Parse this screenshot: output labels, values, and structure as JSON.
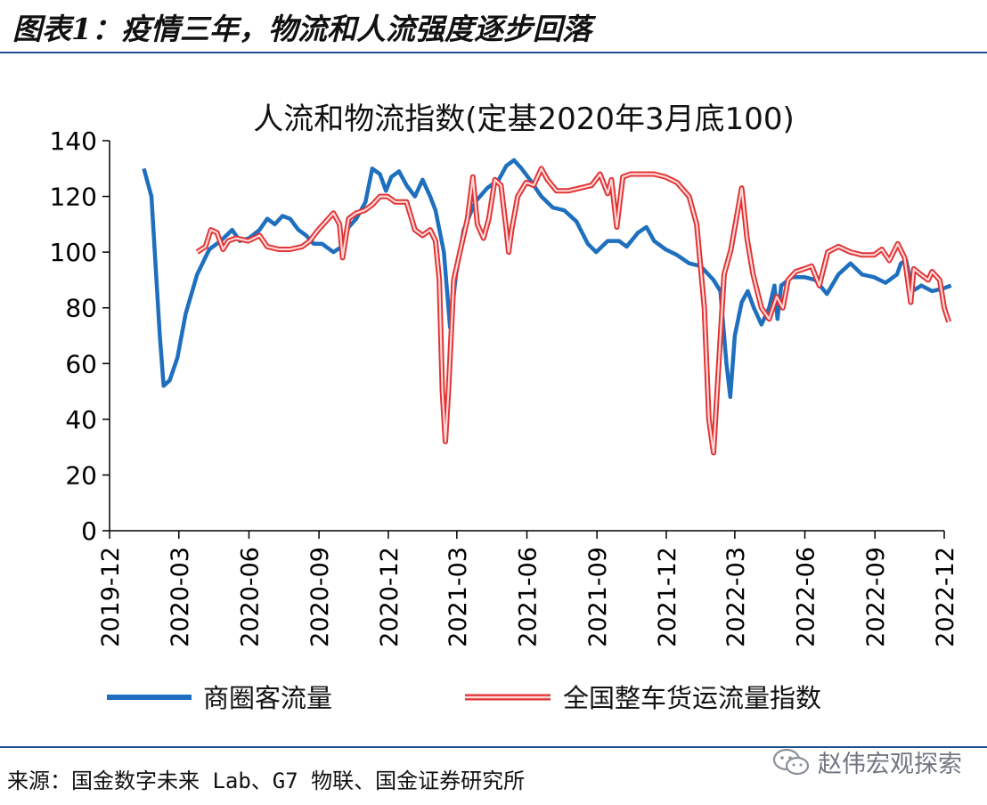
{
  "header": {
    "title": "图表1：疫情三年，物流和人流强度逐步回落"
  },
  "footer": {
    "source": "来源：国金数字未来 Lab、G7 物联、国金证券研究所"
  },
  "watermark": {
    "text": "赵伟宏观探索",
    "icon": "wechat-icon"
  },
  "colors": {
    "blue": "#1f6fbf",
    "red": "#e03131",
    "rule": "#1f4e8c"
  },
  "chart_data": {
    "type": "line",
    "title": "人流和物流指数(定基2020年3月底100)",
    "ylim": [
      0,
      140
    ],
    "yticks": [
      0,
      20,
      40,
      60,
      80,
      100,
      120,
      140
    ],
    "xticks": [
      "2019-12",
      "2020-03",
      "2020-06",
      "2020-09",
      "2020-12",
      "2021-03",
      "2021-06",
      "2021-09",
      "2021-12",
      "2022-03",
      "2022-06",
      "2022-09",
      "2022-12"
    ],
    "grid": false,
    "legend_position": "bottom",
    "series": [
      {
        "name": "商圈客流量",
        "color": "#1f6fbf",
        "points": [
          [
            "2020-01-15",
            130
          ],
          [
            "2020-01-25",
            120
          ],
          [
            "2020-02-05",
            70
          ],
          [
            "2020-02-10",
            52
          ],
          [
            "2020-02-18",
            54
          ],
          [
            "2020-02-28",
            62
          ],
          [
            "2020-03-10",
            78
          ],
          [
            "2020-03-25",
            92
          ],
          [
            "2020-04-10",
            101
          ],
          [
            "2020-04-25",
            104
          ],
          [
            "2020-05-10",
            108
          ],
          [
            "2020-05-20",
            104
          ],
          [
            "2020-06-01",
            105
          ],
          [
            "2020-06-15",
            108
          ],
          [
            "2020-06-25",
            112
          ],
          [
            "2020-07-05",
            110
          ],
          [
            "2020-07-15",
            113
          ],
          [
            "2020-07-25",
            112
          ],
          [
            "2020-08-05",
            108
          ],
          [
            "2020-08-15",
            106
          ],
          [
            "2020-08-25",
            103
          ],
          [
            "2020-09-05",
            103
          ],
          [
            "2020-09-20",
            100
          ],
          [
            "2020-10-01",
            102
          ],
          [
            "2020-10-10",
            109
          ],
          [
            "2020-10-20",
            112
          ],
          [
            "2020-11-01",
            118
          ],
          [
            "2020-11-10",
            130
          ],
          [
            "2020-11-20",
            128
          ],
          [
            "2020-11-28",
            122
          ],
          [
            "2020-12-05",
            127
          ],
          [
            "2020-12-15",
            129
          ],
          [
            "2020-12-25",
            124
          ],
          [
            "2021-01-05",
            120
          ],
          [
            "2021-01-15",
            126
          ],
          [
            "2021-01-25",
            120
          ],
          [
            "2021-02-01",
            115
          ],
          [
            "2021-02-12",
            100
          ],
          [
            "2021-02-20",
            73
          ],
          [
            "2021-02-28",
            92
          ],
          [
            "2021-03-10",
            108
          ],
          [
            "2021-03-25",
            118
          ],
          [
            "2021-04-10",
            123
          ],
          [
            "2021-04-25",
            126
          ],
          [
            "2021-05-05",
            131
          ],
          [
            "2021-05-15",
            133
          ],
          [
            "2021-05-25",
            130
          ],
          [
            "2021-06-05",
            126
          ],
          [
            "2021-06-20",
            120
          ],
          [
            "2021-07-05",
            116
          ],
          [
            "2021-07-20",
            115
          ],
          [
            "2021-08-05",
            111
          ],
          [
            "2021-08-20",
            103
          ],
          [
            "2021-08-31",
            100
          ],
          [
            "2021-09-15",
            104
          ],
          [
            "2021-09-30",
            104
          ],
          [
            "2021-10-10",
            102
          ],
          [
            "2021-10-25",
            107
          ],
          [
            "2021-11-05",
            109
          ],
          [
            "2021-11-15",
            104
          ],
          [
            "2021-11-30",
            101
          ],
          [
            "2021-12-15",
            99
          ],
          [
            "2021-12-31",
            96
          ],
          [
            "2022-01-15",
            95
          ],
          [
            "2022-02-01",
            90
          ],
          [
            "2022-02-10",
            86
          ],
          [
            "2022-02-18",
            60
          ],
          [
            "2022-02-23",
            48
          ],
          [
            "2022-03-01",
            70
          ],
          [
            "2022-03-10",
            82
          ],
          [
            "2022-03-18",
            86
          ],
          [
            "2022-03-26",
            80
          ],
          [
            "2022-04-05",
            74
          ],
          [
            "2022-04-15",
            80
          ],
          [
            "2022-04-22",
            88
          ],
          [
            "2022-04-26",
            76
          ],
          [
            "2022-05-01",
            88
          ],
          [
            "2022-05-15",
            91
          ],
          [
            "2022-06-01",
            91
          ],
          [
            "2022-06-15",
            90
          ],
          [
            "2022-06-30",
            85
          ],
          [
            "2022-07-15",
            92
          ],
          [
            "2022-07-31",
            96
          ],
          [
            "2022-08-15",
            92
          ],
          [
            "2022-08-31",
            91
          ],
          [
            "2022-09-15",
            89
          ],
          [
            "2022-09-30",
            92
          ],
          [
            "2022-10-05",
            96
          ],
          [
            "2022-10-12",
            97
          ],
          [
            "2022-10-20",
            86
          ],
          [
            "2022-11-01",
            88
          ],
          [
            "2022-11-15",
            86
          ],
          [
            "2022-11-30",
            87
          ],
          [
            "2022-12-10",
            88
          ]
        ]
      },
      {
        "name": "全国整车货运流量指数",
        "color": "#e03131",
        "points": [
          [
            "2020-03-25",
            100
          ],
          [
            "2020-04-05",
            102
          ],
          [
            "2020-04-12",
            108
          ],
          [
            "2020-04-20",
            107
          ],
          [
            "2020-04-28",
            101
          ],
          [
            "2020-05-05",
            104
          ],
          [
            "2020-05-15",
            105
          ],
          [
            "2020-05-31",
            104
          ],
          [
            "2020-06-15",
            106
          ],
          [
            "2020-06-25",
            102
          ],
          [
            "2020-07-10",
            101
          ],
          [
            "2020-07-25",
            101
          ],
          [
            "2020-08-10",
            102
          ],
          [
            "2020-08-20",
            104
          ],
          [
            "2020-08-31",
            108
          ],
          [
            "2020-09-10",
            111
          ],
          [
            "2020-09-20",
            114
          ],
          [
            "2020-09-28",
            110
          ],
          [
            "2020-10-02",
            98
          ],
          [
            "2020-10-10",
            112
          ],
          [
            "2020-10-20",
            114
          ],
          [
            "2020-10-31",
            115
          ],
          [
            "2020-11-10",
            117
          ],
          [
            "2020-11-20",
            120
          ],
          [
            "2020-11-30",
            120
          ],
          [
            "2020-12-10",
            118
          ],
          [
            "2020-12-25",
            118
          ],
          [
            "2021-01-05",
            108
          ],
          [
            "2021-01-15",
            106
          ],
          [
            "2021-01-25",
            108
          ],
          [
            "2021-02-01",
            104
          ],
          [
            "2021-02-06",
            90
          ],
          [
            "2021-02-10",
            50
          ],
          [
            "2021-02-14",
            32
          ],
          [
            "2021-02-18",
            50
          ],
          [
            "2021-02-25",
            90
          ],
          [
            "2021-03-05",
            100
          ],
          [
            "2021-03-15",
            112
          ],
          [
            "2021-03-22",
            127
          ],
          [
            "2021-03-28",
            110
          ],
          [
            "2021-04-05",
            105
          ],
          [
            "2021-04-12",
            112
          ],
          [
            "2021-04-20",
            126
          ],
          [
            "2021-04-28",
            124
          ],
          [
            "2021-05-05",
            108
          ],
          [
            "2021-05-08",
            100
          ],
          [
            "2021-05-12",
            108
          ],
          [
            "2021-05-20",
            120
          ],
          [
            "2021-05-31",
            125
          ],
          [
            "2021-06-10",
            124
          ],
          [
            "2021-06-20",
            130
          ],
          [
            "2021-06-28",
            126
          ],
          [
            "2021-07-10",
            122
          ],
          [
            "2021-07-25",
            122
          ],
          [
            "2021-08-10",
            123
          ],
          [
            "2021-08-25",
            124
          ],
          [
            "2021-09-05",
            128
          ],
          [
            "2021-09-15",
            121
          ],
          [
            "2021-09-20",
            126
          ],
          [
            "2021-09-27",
            109
          ],
          [
            "2021-10-05",
            127
          ],
          [
            "2021-10-15",
            128
          ],
          [
            "2021-10-31",
            128
          ],
          [
            "2021-11-15",
            128
          ],
          [
            "2021-11-30",
            127
          ],
          [
            "2021-12-15",
            125
          ],
          [
            "2021-12-31",
            120
          ],
          [
            "2022-01-10",
            110
          ],
          [
            "2022-01-20",
            80
          ],
          [
            "2022-01-26",
            40
          ],
          [
            "2022-02-01",
            28
          ],
          [
            "2022-02-08",
            60
          ],
          [
            "2022-02-15",
            92
          ],
          [
            "2022-02-24",
            101
          ],
          [
            "2022-03-03",
            112
          ],
          [
            "2022-03-10",
            123
          ],
          [
            "2022-03-17",
            105
          ],
          [
            "2022-03-25",
            92
          ],
          [
            "2022-04-05",
            80
          ],
          [
            "2022-04-15",
            76
          ],
          [
            "2022-04-25",
            84
          ],
          [
            "2022-05-03",
            80
          ],
          [
            "2022-05-10",
            90
          ],
          [
            "2022-05-20",
            93
          ],
          [
            "2022-05-31",
            94
          ],
          [
            "2022-06-10",
            95
          ],
          [
            "2022-06-20",
            88
          ],
          [
            "2022-07-01",
            100
          ],
          [
            "2022-07-15",
            102
          ],
          [
            "2022-07-31",
            100
          ],
          [
            "2022-08-15",
            99
          ],
          [
            "2022-08-31",
            99
          ],
          [
            "2022-09-10",
            101
          ],
          [
            "2022-09-20",
            97
          ],
          [
            "2022-10-01",
            103
          ],
          [
            "2022-10-10",
            98
          ],
          [
            "2022-10-18",
            82
          ],
          [
            "2022-10-22",
            94
          ],
          [
            "2022-10-31",
            92
          ],
          [
            "2022-11-10",
            90
          ],
          [
            "2022-11-15",
            93
          ],
          [
            "2022-11-25",
            90
          ],
          [
            "2022-12-01",
            80
          ],
          [
            "2022-12-07",
            75
          ]
        ]
      }
    ]
  }
}
